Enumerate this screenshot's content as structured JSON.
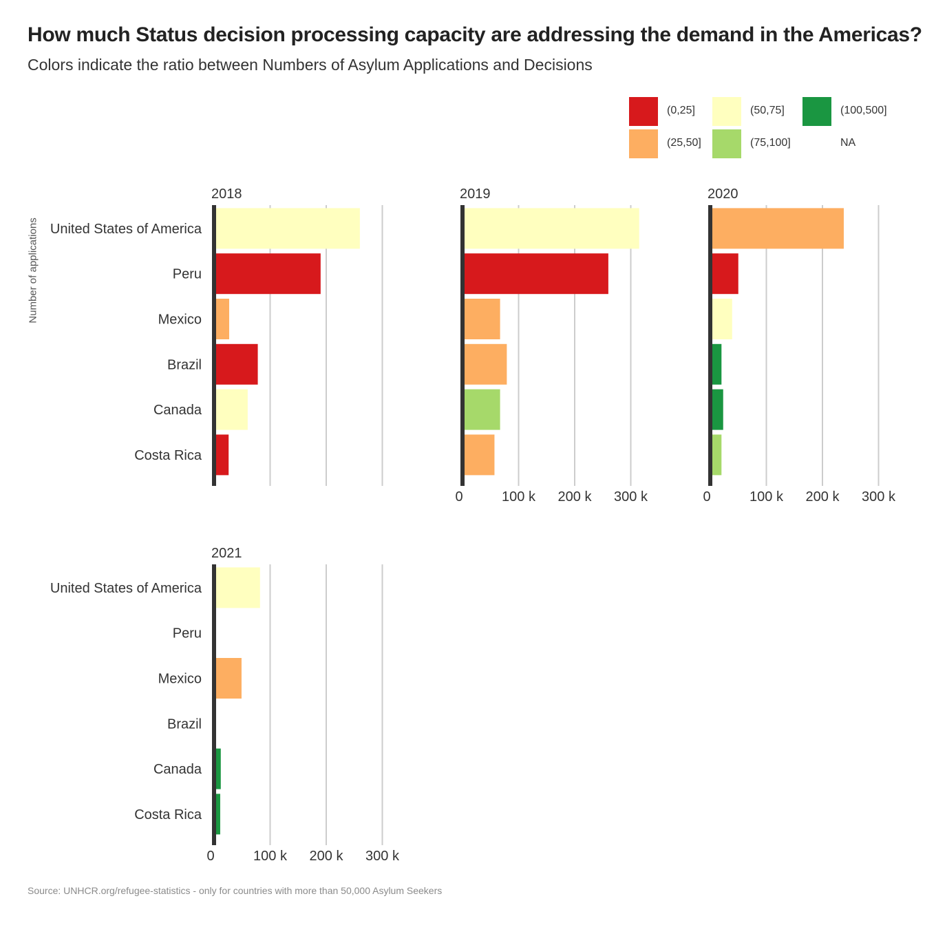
{
  "title": "How much Status decision processing capacity are addressing the demand in the Americas?",
  "subtitle": "Colors indicate the ratio between Numbers of Asylum Applications and Decisions",
  "caption": "Source: UNHCR.org/refugee-statistics - only for countries with more than 50,000 Asylum Seekers",
  "legend": {
    "items": [
      {
        "label": "(0,25]",
        "color": "#d7191c"
      },
      {
        "label": "(25,50]",
        "color": "#fdae61"
      },
      {
        "label": "(50,75]",
        "color": "#ffffbf"
      },
      {
        "label": "(75,100]",
        "color": "#a6d96a"
      },
      {
        "label": "(100,500]",
        "color": "#1a9641"
      },
      {
        "label": "NA",
        "color": null
      }
    ]
  },
  "chart_data": {
    "type": "bar",
    "orientation": "horizontal",
    "ylabel": "Number of applications",
    "categories": [
      "United States of America",
      "Peru",
      "Mexico",
      "Brazil",
      "Canada",
      "Costa Rica"
    ],
    "xlim": [
      0,
      300000
    ],
    "xticks": [
      0,
      100000,
      200000,
      300000
    ],
    "xtick_labels": [
      "0",
      "100 k",
      "200 k",
      "300 k"
    ],
    "grid": "vertical",
    "legend_position": "top-right",
    "panels": [
      {
        "label": "2018",
        "values": [
          260000,
          190000,
          27000,
          78000,
          60000,
          26000
        ],
        "ratio_classes": [
          "(50,75]",
          "(0,25]",
          "(25,50]",
          "(0,25]",
          "(50,75]",
          "(0,25]"
        ]
      },
      {
        "label": "2019",
        "values": [
          315000,
          260000,
          67000,
          79000,
          67000,
          57000
        ],
        "ratio_classes": [
          "(50,75]",
          "(0,25]",
          "(25,50]",
          "(25,50]",
          "(75,100]",
          "(25,50]"
        ]
      },
      {
        "label": "2020",
        "values": [
          238000,
          50000,
          39000,
          20000,
          23000,
          20000
        ],
        "ratio_classes": [
          "(25,50]",
          "(0,25]",
          "(50,75]",
          "(100,500]",
          "(100,500]",
          "(75,100]"
        ]
      },
      {
        "label": "2021",
        "values": [
          82000,
          0,
          49000,
          3000,
          12000,
          11000
        ],
        "ratio_classes": [
          "(50,75]",
          "NA",
          "(25,50]",
          "(25,50]",
          "(100,500]",
          "(100,500]"
        ]
      }
    ]
  }
}
